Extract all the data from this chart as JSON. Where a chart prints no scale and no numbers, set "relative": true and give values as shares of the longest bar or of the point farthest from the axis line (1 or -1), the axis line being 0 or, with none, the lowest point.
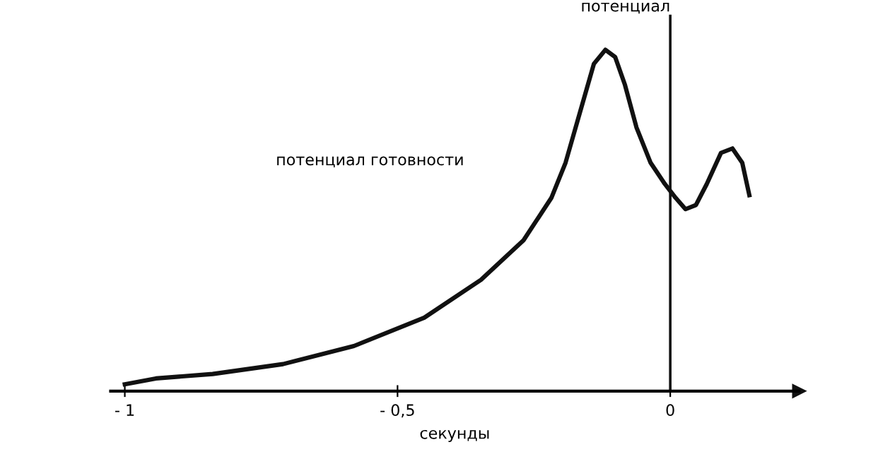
{
  "chart_data": {
    "type": "line",
    "relative": true,
    "xlabel": "секунды",
    "color": "#111111",
    "x": [
      -1.0,
      -0.943,
      -0.839,
      -0.71,
      -0.58,
      -0.451,
      -0.347,
      -0.269,
      -0.218,
      -0.192,
      -0.166,
      -0.14,
      -0.119,
      -0.101,
      -0.083,
      -0.062,
      -0.036,
      -0.01,
      0.01,
      0.028,
      0.047,
      0.067,
      0.093,
      0.114,
      0.132,
      0.145
    ],
    "values": [
      0.02,
      0.037,
      0.05,
      0.079,
      0.132,
      0.215,
      0.326,
      0.442,
      0.566,
      0.669,
      0.814,
      0.959,
      1.0,
      0.979,
      0.897,
      0.773,
      0.669,
      0.607,
      0.566,
      0.533,
      0.545,
      0.607,
      0.698,
      0.711,
      0.669,
      0.574
    ],
    "xlim": [
      -1.026,
      0.236
    ],
    "xticks": [
      {
        "value": -1,
        "label": "- 1"
      },
      {
        "value": -0.5,
        "label": "- 0,5"
      },
      0
    ],
    "ref_lines": [
      {
        "axis": "x",
        "value": 0,
        "label": "потенциал"
      }
    ],
    "annotations": [
      "потенциал готовности"
    ],
    "grid": false,
    "legend": false,
    "marker": "none",
    "line_style": "solid"
  }
}
